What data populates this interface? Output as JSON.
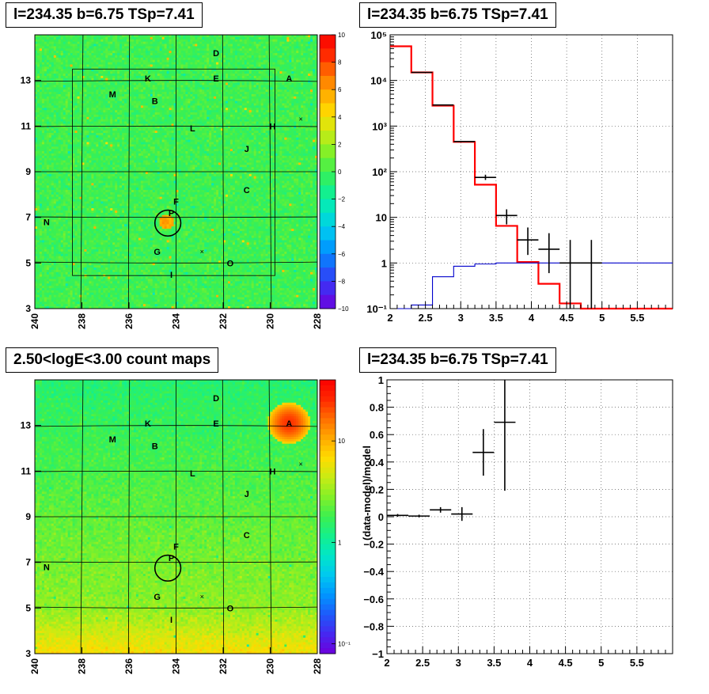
{
  "panels": {
    "top_left_title": "l=234.35 b=6.75 TSp=7.41",
    "top_right_title": "l=234.35 b=6.75 TSp=7.41",
    "bottom_left_title": "2.50<logE<3.00 count maps",
    "bottom_right_title": "l=234.35 b=6.75 TSp=7.41"
  },
  "colors": {
    "model_line": "#ff0000",
    "secondary_line": "#0000cc",
    "data": "#000000",
    "frame": "#000000"
  },
  "chart_data": [
    {
      "id": "residual_map",
      "type": "heatmap",
      "title": "l=234.35 b=6.75 TSp=7.41",
      "x_ticks": [
        "240",
        "238",
        "236",
        "234",
        "232",
        "230",
        "228"
      ],
      "y_ticks": [
        "3",
        "5",
        "7",
        "9",
        "11",
        "13"
      ],
      "xlim": [
        240,
        228
      ],
      "ylim": [
        3,
        15
      ],
      "colorbar": {
        "ticks": [
          "10",
          "8",
          "6",
          "4",
          "2",
          "0",
          "−2",
          "−4",
          "−6",
          "−8",
          "−10"
        ],
        "range": [
          -10,
          10
        ],
        "scale": "linear"
      },
      "grid": true,
      "sources": [
        {
          "label": "D",
          "l": 232.3,
          "b": 14.2
        },
        {
          "label": "K",
          "l": 235.2,
          "b": 13.1
        },
        {
          "label": "E",
          "l": 232.3,
          "b": 13.1
        },
        {
          "label": "A",
          "l": 229.2,
          "b": 13.1
        },
        {
          "label": "M",
          "l": 236.7,
          "b": 12.4
        },
        {
          "label": "B",
          "l": 234.9,
          "b": 12.1
        },
        {
          "label": "L",
          "l": 233.3,
          "b": 10.9
        },
        {
          "label": "H",
          "l": 229.9,
          "b": 11.0
        },
        {
          "label": "J",
          "l": 231.0,
          "b": 10.0
        },
        {
          "label": "C",
          "l": 231.0,
          "b": 8.2
        },
        {
          "label": "F",
          "l": 234.0,
          "b": 7.7
        },
        {
          "label": "P",
          "l": 234.2,
          "b": 7.2
        },
        {
          "label": "N",
          "l": 239.5,
          "b": 6.8
        },
        {
          "label": "G",
          "l": 234.8,
          "b": 5.5
        },
        {
          "label": "O",
          "l": 231.7,
          "b": 5.0
        },
        {
          "label": "I",
          "l": 234.2,
          "b": 4.5
        }
      ],
      "crosses": [
        {
          "l": 228.7,
          "b": 11.3
        },
        {
          "l": 232.9,
          "b": 5.5
        }
      ],
      "circle": {
        "l": 234.35,
        "b": 6.75,
        "r_deg": 0.55
      },
      "inner_box": {
        "l_range": [
          238.4,
          229.8
        ],
        "b_range": [
          4.45,
          13.5
        ]
      }
    },
    {
      "id": "spectrum",
      "type": "line",
      "title": "l=234.35 b=6.75 TSp=7.41",
      "x_ticks": [
        "2",
        "2.5",
        "3",
        "3.5",
        "4",
        "4.5",
        "5",
        "5.5"
      ],
      "y_ticks": [
        "10⁻¹",
        "1",
        "10",
        "10²",
        "10³",
        "10⁴",
        "10⁵"
      ],
      "xlim": [
        2,
        6
      ],
      "ylim": [
        0.1,
        100000
      ],
      "yscale": "log",
      "grid": true,
      "bin_edges": [
        2.0,
        2.3,
        2.6,
        2.9,
        3.2,
        3.5,
        3.8,
        4.1,
        4.4,
        4.7,
        5.0,
        6.0
      ],
      "series": [
        {
          "values": [
            56000,
            15000,
            2800,
            450,
            52,
            6.5,
            1.05,
            0.35,
            0.13,
            0.1,
            0.1
          ],
          "color": "#ff0000"
        },
        {
          "values": [
            0.1,
            0.12,
            0.5,
            0.85,
            0.95,
            1.0,
            1.0,
            1.0,
            1.0,
            1.0,
            1.0
          ],
          "color": "#0000cc"
        }
      ],
      "points": [
        {
          "x": 2.45,
          "y": 15000,
          "xerr": 0.15,
          "ylow": 15000,
          "yhigh": 15000
        },
        {
          "x": 2.75,
          "y": 2900,
          "xerr": 0.15,
          "ylow": 2900,
          "yhigh": 2900
        },
        {
          "x": 3.05,
          "y": 460,
          "xerr": 0.15,
          "ylow": 460,
          "yhigh": 460
        },
        {
          "x": 3.35,
          "y": 75,
          "xerr": 0.15,
          "ylow": 66,
          "yhigh": 86
        },
        {
          "x": 3.65,
          "y": 11,
          "xerr": 0.15,
          "ylow": 7,
          "yhigh": 15
        },
        {
          "x": 3.95,
          "y": 3.2,
          "xerr": 0.15,
          "ylow": 1.5,
          "yhigh": 6
        },
        {
          "x": 4.25,
          "y": 2.0,
          "xerr": 0.15,
          "ylow": 0.6,
          "yhigh": 4.5
        },
        {
          "x": 4.55,
          "y": 1.0,
          "xerr": 0.15,
          "ylow": 0.1,
          "yhigh": 3.2
        },
        {
          "x": 4.85,
          "y": 1.0,
          "xerr": 0.15,
          "ylow": 0.1,
          "yhigh": 3.2
        }
      ]
    },
    {
      "id": "count_map",
      "type": "heatmap",
      "title": "2.50<logE<3.00 count maps",
      "x_ticks": [
        "240",
        "238",
        "236",
        "234",
        "232",
        "230",
        "228"
      ],
      "y_ticks": [
        "3",
        "5",
        "7",
        "9",
        "11",
        "13"
      ],
      "xlim": [
        240,
        228
      ],
      "ylim": [
        3,
        15
      ],
      "colorbar": {
        "ticks": [
          "10",
          "1",
          "10⁻¹"
        ],
        "range": [
          0.08,
          40
        ],
        "scale": "log"
      },
      "grid": true,
      "sources": [
        {
          "label": "D",
          "l": 232.3,
          "b": 14.2
        },
        {
          "label": "K",
          "l": 235.2,
          "b": 13.1
        },
        {
          "label": "E",
          "l": 232.3,
          "b": 13.1
        },
        {
          "label": "A",
          "l": 229.2,
          "b": 13.1
        },
        {
          "label": "M",
          "l": 236.7,
          "b": 12.4
        },
        {
          "label": "B",
          "l": 234.9,
          "b": 12.1
        },
        {
          "label": "L",
          "l": 233.3,
          "b": 10.9
        },
        {
          "label": "H",
          "l": 229.9,
          "b": 11.0
        },
        {
          "label": "J",
          "l": 231.0,
          "b": 10.0
        },
        {
          "label": "C",
          "l": 231.0,
          "b": 8.2
        },
        {
          "label": "F",
          "l": 234.0,
          "b": 7.7
        },
        {
          "label": "P",
          "l": 234.2,
          "b": 7.2
        },
        {
          "label": "N",
          "l": 239.5,
          "b": 6.8
        },
        {
          "label": "G",
          "l": 234.8,
          "b": 5.5
        },
        {
          "label": "O",
          "l": 231.7,
          "b": 5.0
        },
        {
          "label": "I",
          "l": 234.2,
          "b": 4.5
        }
      ],
      "crosses": [
        {
          "l": 228.7,
          "b": 11.3
        },
        {
          "l": 232.9,
          "b": 5.5
        }
      ],
      "circle": {
        "l": 234.35,
        "b": 6.75,
        "r_deg": 0.55
      }
    },
    {
      "id": "residuals",
      "type": "scatter",
      "title": "l=234.35 b=6.75 TSp=7.41",
      "ylabel": "(data-model)/model",
      "x_ticks": [
        "2",
        "2.5",
        "3",
        "3.5",
        "4",
        "4.5",
        "5",
        "5.5"
      ],
      "y_ticks": [
        "1",
        "0.8",
        "0.6",
        "0.4",
        "0.2",
        "0",
        "−0.2",
        "−0.4",
        "−0.6",
        "−0.8",
        "−1"
      ],
      "xlim": [
        2,
        6
      ],
      "ylim": [
        -1,
        1
      ],
      "grid": true,
      "points": [
        {
          "x": 2.15,
          "y": 0.01,
          "xerr": 0.15,
          "ylow": 0.0,
          "yhigh": 0.02
        },
        {
          "x": 2.45,
          "y": 0.005,
          "xerr": 0.15,
          "ylow": -0.005,
          "yhigh": 0.015
        },
        {
          "x": 2.75,
          "y": 0.05,
          "xerr": 0.15,
          "ylow": 0.03,
          "yhigh": 0.07
        },
        {
          "x": 3.05,
          "y": 0.02,
          "xerr": 0.15,
          "ylow": -0.03,
          "yhigh": 0.07
        },
        {
          "x": 3.35,
          "y": 0.47,
          "xerr": 0.15,
          "ylow": 0.3,
          "yhigh": 0.64
        },
        {
          "x": 3.65,
          "y": 0.69,
          "xerr": 0.15,
          "ylow": 0.19,
          "yhigh": 1.0
        }
      ]
    }
  ]
}
